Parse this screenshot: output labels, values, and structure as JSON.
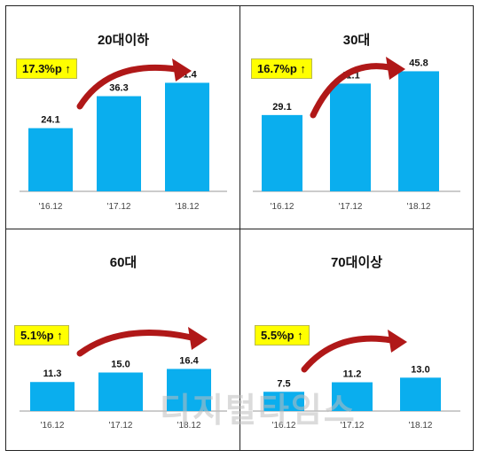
{
  "chart_data": [
    {
      "type": "bar",
      "title": "20대이하",
      "callout": "17.3%p ↑",
      "categories": [
        "'16.12",
        "'17.12",
        "'18.12"
      ],
      "values": [
        24.1,
        36.3,
        41.4
      ],
      "value_labels": [
        "24.1",
        "36.3",
        "41.4"
      ],
      "ylim": [
        0,
        50
      ]
    },
    {
      "type": "bar",
      "title": "30대",
      "callout": "16.7%p ↑",
      "categories": [
        "'16.12",
        "'17.12",
        "'18.12"
      ],
      "values": [
        29.1,
        41.1,
        45.8
      ],
      "value_labels": [
        "29.1",
        "41.1",
        "45.8"
      ],
      "ylim": [
        0,
        50
      ]
    },
    {
      "type": "bar",
      "title": "60대",
      "callout": "5.1%p ↑",
      "categories": [
        "'16.12",
        "'17.12",
        "'18.12"
      ],
      "values": [
        11.3,
        15.0,
        16.4
      ],
      "value_labels": [
        "11.3",
        "15.0",
        "16.4"
      ],
      "ylim": [
        0,
        50
      ]
    },
    {
      "type": "bar",
      "title": "70대이상",
      "callout": "5.5%p ↑",
      "categories": [
        "'16.12",
        "'17.12",
        "'18.12"
      ],
      "values": [
        7.5,
        11.2,
        13.0
      ],
      "value_labels": [
        "7.5",
        "11.2",
        "13.0"
      ],
      "ylim": [
        0,
        50
      ]
    }
  ],
  "colors": {
    "bar": "#0aaeee",
    "arrow": "#b01818",
    "callout_bg": "#ffff00",
    "axis": "#999999"
  },
  "watermark": "디지털타임스"
}
